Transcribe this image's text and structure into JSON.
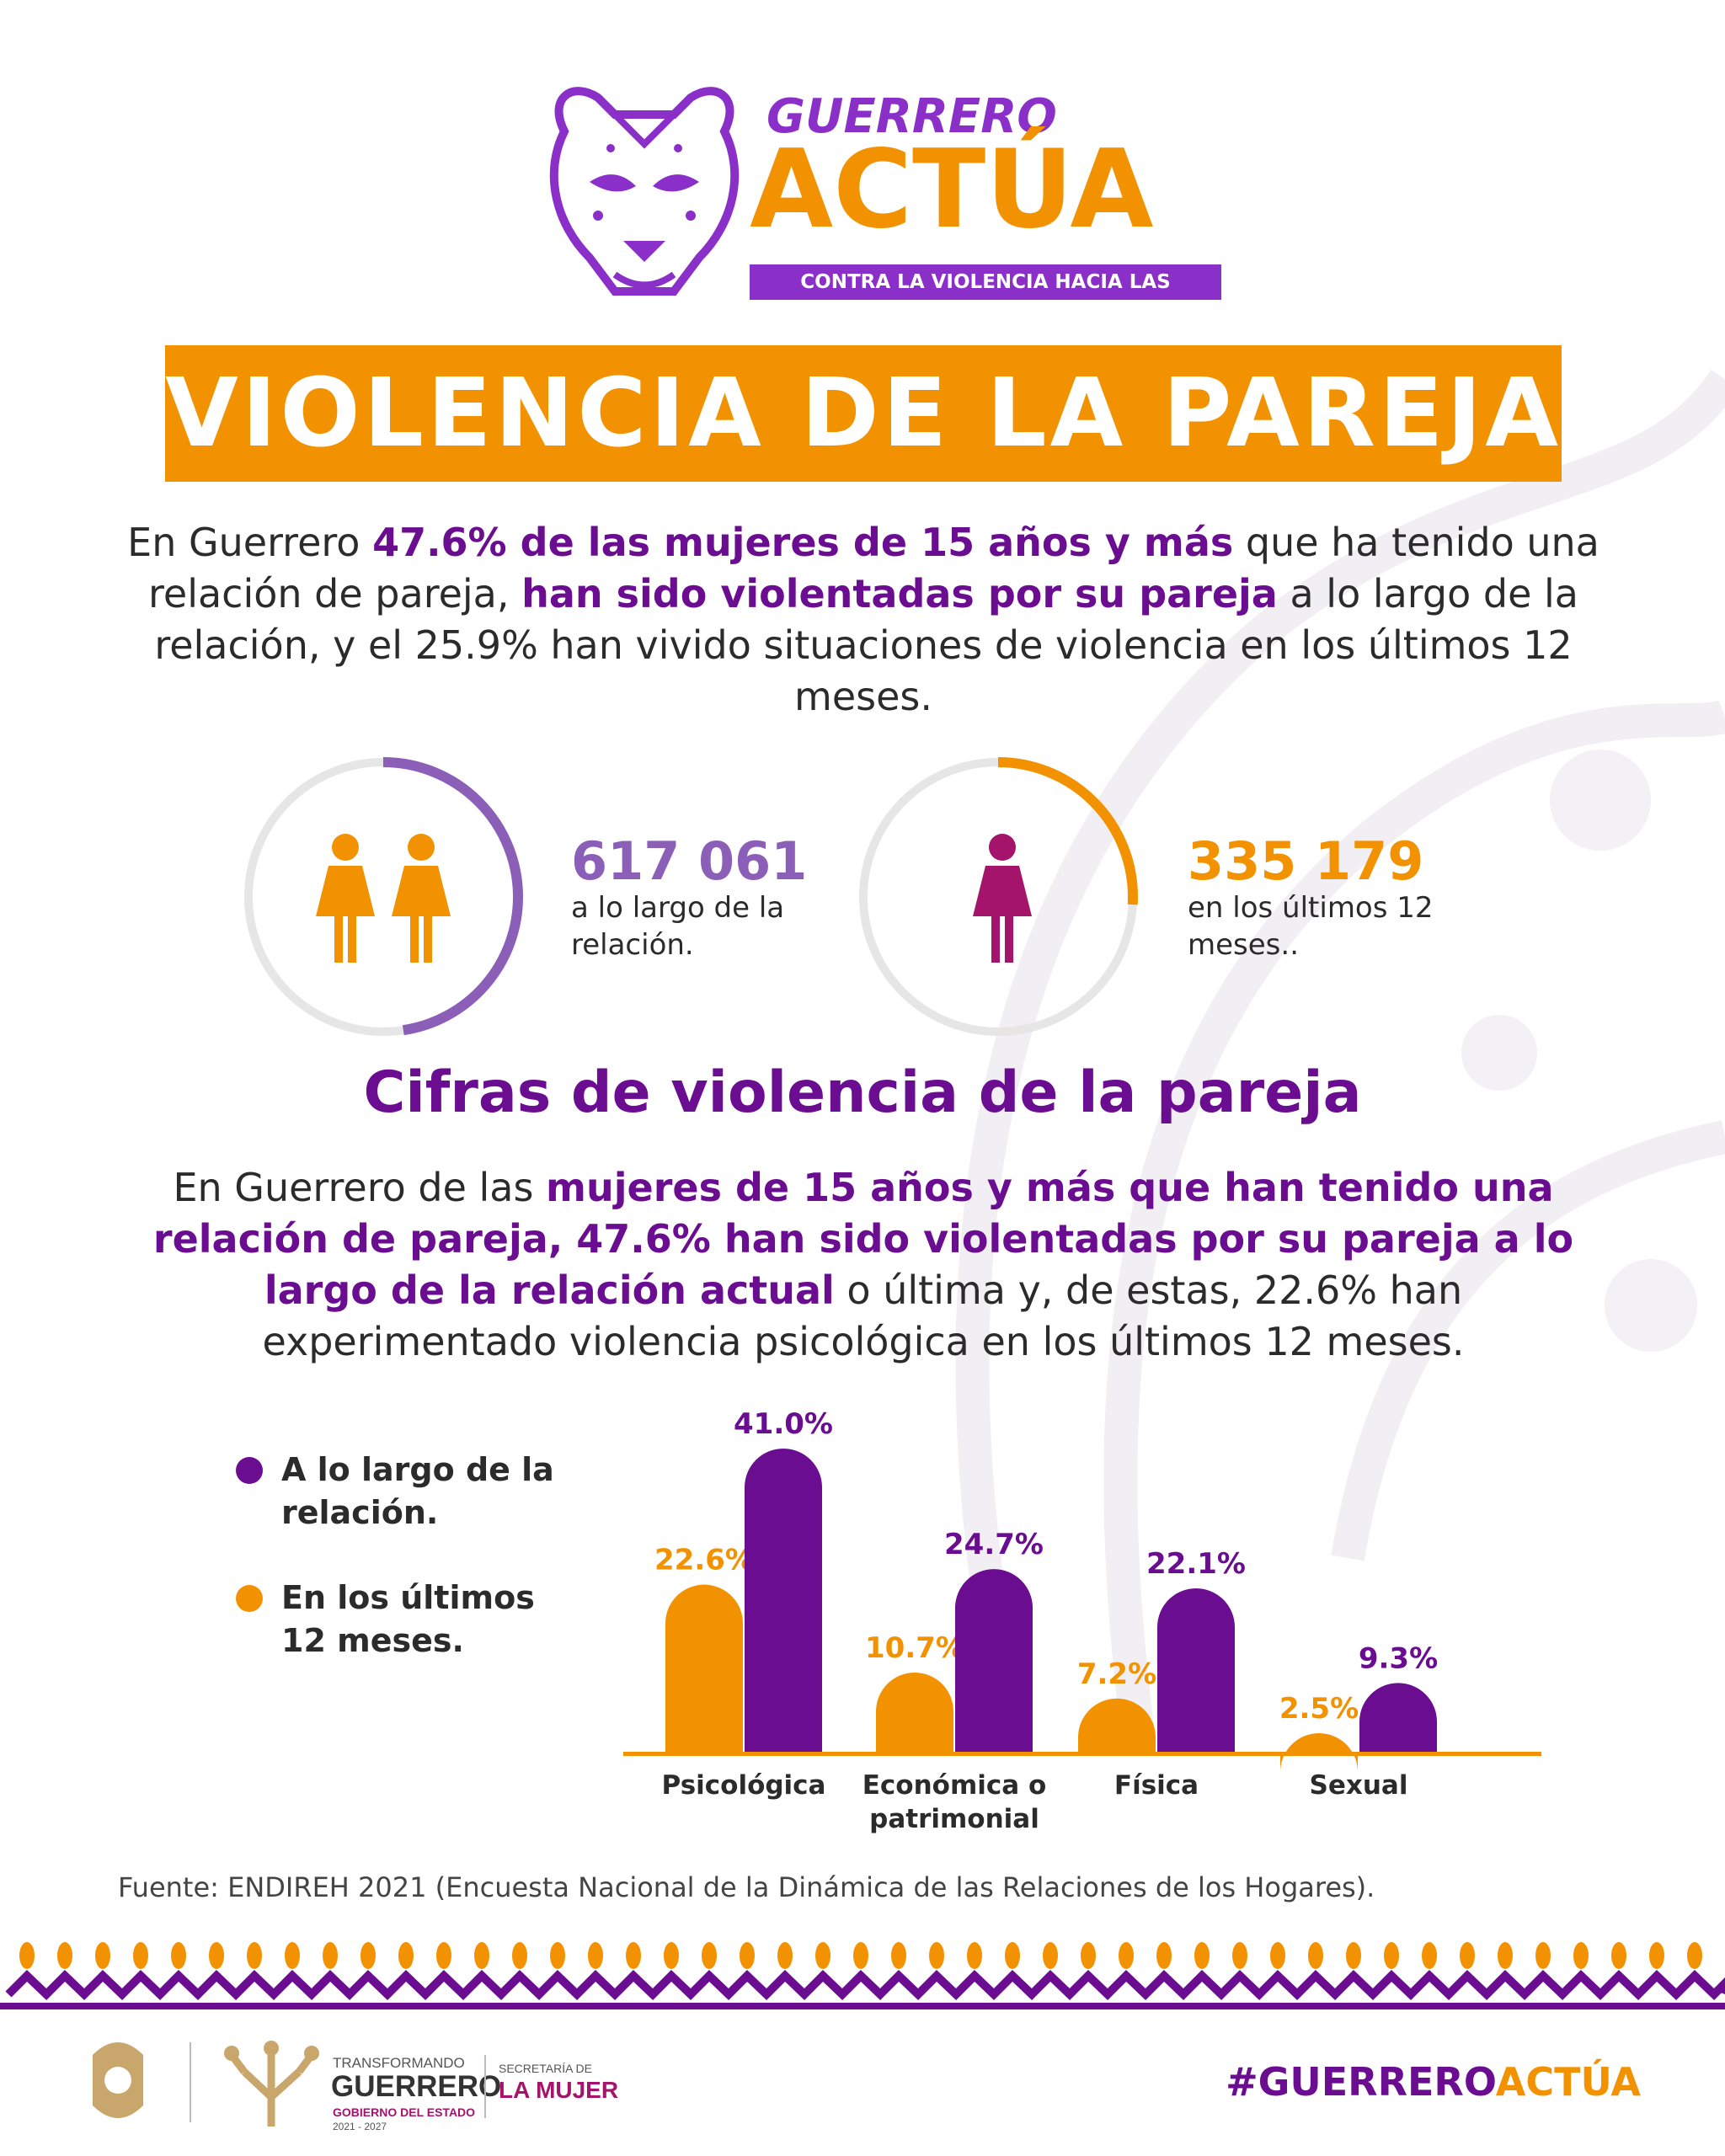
{
  "logo": {
    "top": "GUERRERO",
    "main": "ACTÚA",
    "tagline": "CONTRA LA VIOLENCIA HACIA LAS MUJERES"
  },
  "title": "VIOLENCIA DE LA PAREJA",
  "intro": {
    "p1": "En Guerrero ",
    "b1": "47.6% de las mujeres de 15 años y más",
    "p2": " que ha tenido una relación de pareja, ",
    "b2": "han sido violentadas por su pareja",
    "p3": " a lo largo de la relación, y el 25.9% han vivido situaciones de violencia en los últimos 12 meses."
  },
  "stats": [
    {
      "number": "617 061",
      "text": "a lo largo de la relación.",
      "fraction": 0.476,
      "color": "#8b5fb8"
    },
    {
      "number": "335 179",
      "text": "en los últimos 12 meses..",
      "fraction": 0.259,
      "color": "#f39200"
    }
  ],
  "section_title": "Cifras de violencia de la pareja",
  "section_text": {
    "p1": "En Guerrero de las ",
    "b1": "mujeres de 15 años y más que han tenido una relación de pareja, 47.6% han sido violentadas por su pareja a lo largo de la relación actual",
    "p2": " o última y, de estas, 22.6% han experimentado violencia psicológica en los últimos 12 meses."
  },
  "legend": [
    {
      "label": "A lo largo de la relación.",
      "color": "#6a0d91"
    },
    {
      "label": "En los últimos 12 meses.",
      "color": "#f39200"
    }
  ],
  "chart_data": {
    "type": "bar",
    "categories": [
      "Psicológica",
      "Económica o patrimonial",
      "Física",
      "Sexual"
    ],
    "series": [
      {
        "name": "En los últimos 12 meses.",
        "values": [
          22.6,
          10.7,
          7.2,
          2.5
        ],
        "color": "#f39200"
      },
      {
        "name": "A lo largo de la relación.",
        "values": [
          41.0,
          24.7,
          22.1,
          9.3
        ],
        "color": "#6a0d91"
      }
    ],
    "value_labels": [
      [
        "22.6%",
        "10.7%",
        "7.2%",
        "2.5%"
      ],
      [
        "41.0%",
        "24.7%",
        "22.1%",
        "9.3%"
      ]
    ],
    "category_labels": [
      [
        "Psicológica"
      ],
      [
        "Económica o",
        "patrimonial"
      ],
      [
        "Física"
      ],
      [
        "Sexual"
      ]
    ],
    "ylim": [
      0,
      41.0
    ]
  },
  "source": "Fuente: ENDIREH 2021 (Encuesta Nacional de la Dinámica de las Relaciones de los Hogares).",
  "footer": {
    "transformando": "TRANSFORMANDO",
    "guerrero": "GUERRERO",
    "gobierno": "GOBIERNO DEL ESTADO",
    "years": "2021 - 2027",
    "secretaria": "SECRETARÍA DE",
    "la_mujer": "LA MUJER",
    "hashtag_a": "#GUERRERO",
    "hashtag_b": "ACTÚA"
  }
}
